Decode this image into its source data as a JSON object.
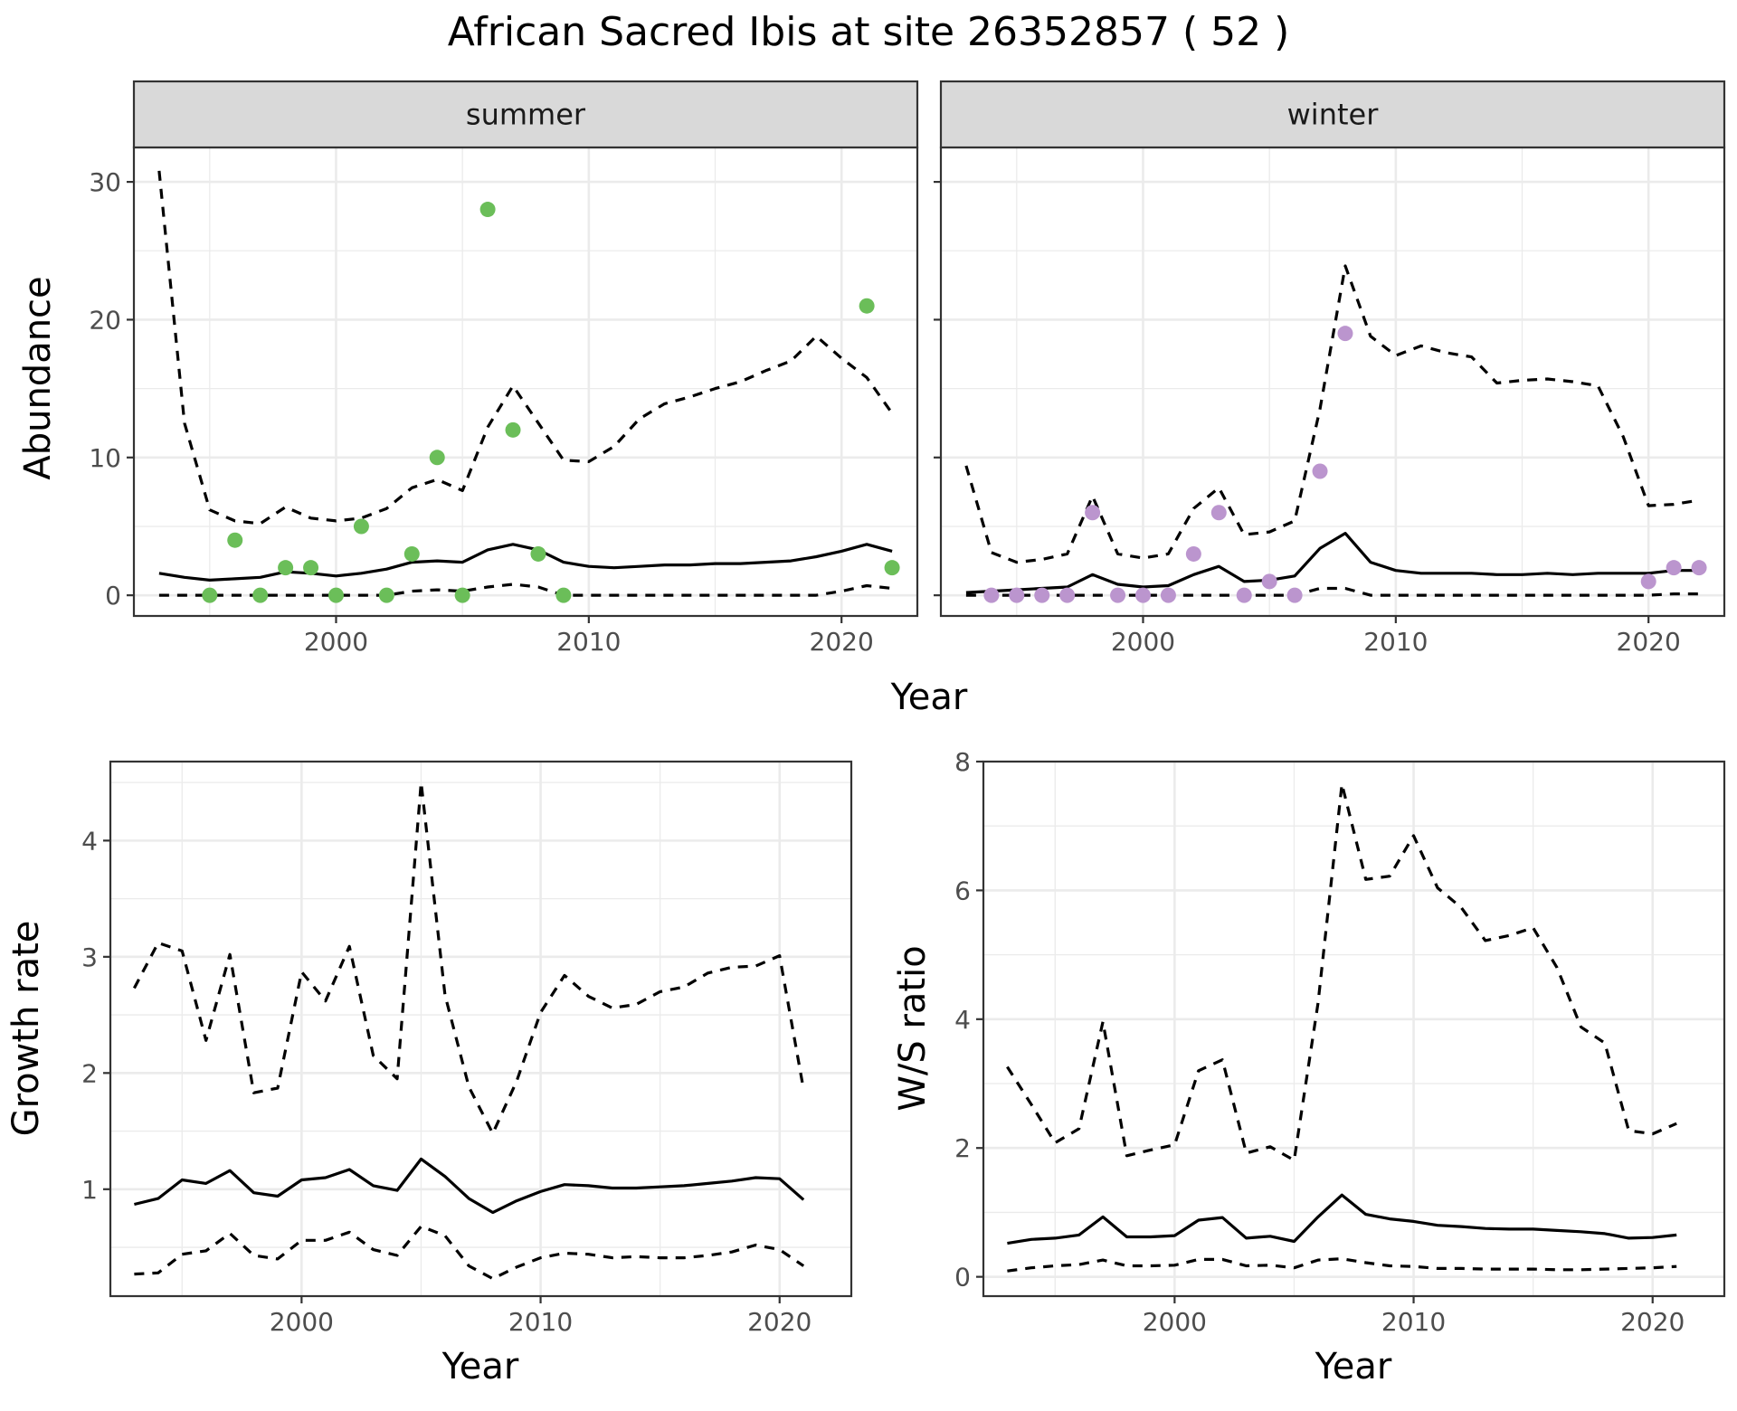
{
  "title": "African Sacred Ibis at site 26352857 ( 52 )",
  "colors": {
    "summer_points": "#6BBE59",
    "winter_points": "#BB95CE",
    "lines": "#000000",
    "strip_fill": "#D9D9D9"
  },
  "chart_data": [
    {
      "type": "line",
      "panel": "summer",
      "strip": "summer",
      "xlabel": "Year",
      "ylabel": "Abundance",
      "xlim": [
        1992,
        2023
      ],
      "ylim": [
        -1.5,
        32.5
      ],
      "xticks": [
        2000,
        2010,
        2020
      ],
      "yticks": [
        0,
        10,
        20,
        30
      ],
      "x": [
        1993,
        1994,
        1995,
        1996,
        1997,
        1998,
        1999,
        2000,
        2001,
        2002,
        2003,
        2004,
        2005,
        2006,
        2007,
        2008,
        2009,
        2010,
        2011,
        2012,
        2013,
        2014,
        2015,
        2016,
        2017,
        2018,
        2019,
        2020,
        2021,
        2022
      ],
      "series": [
        {
          "role": "estimate",
          "style": "solid",
          "values": [
            1.6,
            1.3,
            1.1,
            1.2,
            1.3,
            1.7,
            1.6,
            1.4,
            1.6,
            1.9,
            2.4,
            2.5,
            2.4,
            3.3,
            3.7,
            3.3,
            2.4,
            2.1,
            2.0,
            2.1,
            2.2,
            2.2,
            2.3,
            2.3,
            2.4,
            2.5,
            2.8,
            3.2,
            3.7,
            3.2
          ]
        },
        {
          "role": "upper",
          "style": "dashed",
          "values": [
            30.8,
            12.5,
            6.2,
            5.4,
            5.2,
            6.4,
            5.6,
            5.4,
            5.6,
            6.3,
            7.8,
            8.4,
            7.6,
            12.2,
            15.2,
            12.5,
            9.8,
            9.7,
            10.8,
            12.8,
            13.9,
            14.4,
            15.0,
            15.5,
            16.3,
            17.0,
            18.8,
            17.2,
            15.8,
            13.2
          ]
        },
        {
          "role": "lower",
          "style": "dashed",
          "values": [
            0,
            0,
            0,
            0,
            0,
            0,
            0,
            0,
            0,
            0,
            0.3,
            0.4,
            0.3,
            0.6,
            0.8,
            0.6,
            0,
            0,
            0,
            0,
            0,
            0,
            0,
            0,
            0,
            0,
            0,
            0.3,
            0.7,
            0.5
          ]
        }
      ],
      "points": {
        "x": [
          1995,
          1996,
          1997,
          1998,
          1999,
          2000,
          2001,
          2002,
          2003,
          2004,
          2005,
          2006,
          2007,
          2008,
          2009,
          2021,
          2022
        ],
        "y": [
          0,
          4,
          0,
          2,
          2,
          0,
          5,
          0,
          3,
          10,
          0,
          28,
          12,
          3,
          0,
          21,
          2
        ]
      }
    },
    {
      "type": "line",
      "panel": "winter",
      "strip": "winter",
      "xlabel": "Year",
      "ylabel": "Abundance",
      "xlim": [
        1992,
        2023
      ],
      "ylim": [
        -1.5,
        32.5
      ],
      "xticks": [
        2000,
        2010,
        2020
      ],
      "yticks": [
        0,
        10,
        20,
        30
      ],
      "x": [
        1993,
        1994,
        1995,
        1996,
        1997,
        1998,
        1999,
        2000,
        2001,
        2002,
        2003,
        2004,
        2005,
        2006,
        2007,
        2008,
        2009,
        2010,
        2011,
        2012,
        2013,
        2014,
        2015,
        2016,
        2017,
        2018,
        2019,
        2020,
        2021,
        2022
      ],
      "series": [
        {
          "role": "estimate",
          "style": "solid",
          "values": [
            0.2,
            0.3,
            0.4,
            0.5,
            0.6,
            1.5,
            0.8,
            0.6,
            0.7,
            1.5,
            2.1,
            1.0,
            1.1,
            1.4,
            3.4,
            4.5,
            2.4,
            1.8,
            1.6,
            1.6,
            1.6,
            1.5,
            1.5,
            1.6,
            1.5,
            1.6,
            1.6,
            1.6,
            1.8,
            1.8
          ]
        },
        {
          "role": "upper",
          "style": "dashed",
          "values": [
            9.4,
            3.1,
            2.4,
            2.6,
            3.0,
            7.2,
            3.0,
            2.7,
            3.0,
            6.3,
            7.8,
            4.4,
            4.6,
            5.4,
            13.5,
            23.9,
            18.8,
            17.4,
            18.1,
            17.6,
            17.3,
            15.4,
            15.6,
            15.7,
            15.5,
            15.2,
            11.5,
            6.5,
            6.6,
            6.9
          ]
        },
        {
          "role": "lower",
          "style": "dashed",
          "values": [
            0,
            0,
            0,
            0,
            0,
            0,
            0,
            0,
            0,
            0,
            0,
            0,
            0,
            0,
            0.5,
            0.5,
            0,
            0,
            0,
            0,
            0,
            0,
            0,
            0,
            0,
            0,
            0,
            0,
            0.1,
            0.1
          ]
        }
      ],
      "points": {
        "x": [
          1994,
          1995,
          1996,
          1997,
          1998,
          1999,
          2000,
          2001,
          2002,
          2003,
          2004,
          2005,
          2006,
          2007,
          2008,
          2020,
          2021,
          2022
        ],
        "y": [
          0,
          0,
          0,
          0,
          6,
          0,
          0,
          0,
          3,
          6,
          0,
          1,
          0,
          9,
          19,
          1,
          2,
          2
        ]
      }
    },
    {
      "type": "line",
      "panel": "growth",
      "xlabel": "Year",
      "ylabel": "Growth rate",
      "xlim": [
        1992,
        2023
      ],
      "ylim": [
        0.08,
        4.68
      ],
      "xticks": [
        2000,
        2010,
        2020
      ],
      "yticks": [
        1,
        2,
        3,
        4
      ],
      "x": [
        1993,
        1994,
        1995,
        1996,
        1997,
        1998,
        1999,
        2000,
        2001,
        2002,
        2003,
        2004,
        2005,
        2006,
        2007,
        2008,
        2009,
        2010,
        2011,
        2012,
        2013,
        2014,
        2015,
        2016,
        2017,
        2018,
        2019,
        2020,
        2021
      ],
      "series": [
        {
          "role": "estimate",
          "style": "solid",
          "values": [
            0.87,
            0.92,
            1.08,
            1.05,
            1.16,
            0.97,
            0.94,
            1.08,
            1.1,
            1.17,
            1.03,
            0.99,
            1.26,
            1.11,
            0.92,
            0.8,
            0.9,
            0.98,
            1.04,
            1.03,
            1.01,
            1.01,
            1.02,
            1.03,
            1.05,
            1.07,
            1.1,
            1.09,
            0.91
          ]
        },
        {
          "role": "upper",
          "style": "dashed",
          "values": [
            2.73,
            3.12,
            3.05,
            2.28,
            3.02,
            1.83,
            1.87,
            2.87,
            2.62,
            3.09,
            2.15,
            1.95,
            4.5,
            2.67,
            1.88,
            1.48,
            1.93,
            2.52,
            2.84,
            2.66,
            2.56,
            2.59,
            2.7,
            2.74,
            2.86,
            2.91,
            2.92,
            3.01,
            1.86
          ]
        },
        {
          "role": "lower",
          "style": "dashed",
          "values": [
            0.27,
            0.28,
            0.44,
            0.47,
            0.62,
            0.43,
            0.4,
            0.56,
            0.56,
            0.63,
            0.48,
            0.43,
            0.68,
            0.6,
            0.34,
            0.23,
            0.33,
            0.41,
            0.45,
            0.44,
            0.41,
            0.42,
            0.41,
            0.41,
            0.43,
            0.46,
            0.52,
            0.48,
            0.34
          ]
        }
      ]
    },
    {
      "type": "line",
      "panel": "ratio",
      "xlabel": "Year",
      "ylabel": "W/S ratio",
      "xlim": [
        1992,
        2023
      ],
      "ylim": [
        -0.3,
        8.0
      ],
      "xticks": [
        2000,
        2010,
        2020
      ],
      "yticks": [
        0,
        2,
        4,
        6,
        8
      ],
      "x": [
        1993,
        1994,
        1995,
        1996,
        1997,
        1998,
        1999,
        2000,
        2001,
        2002,
        2003,
        2004,
        2005,
        2006,
        2007,
        2008,
        2009,
        2010,
        2011,
        2012,
        2013,
        2014,
        2015,
        2016,
        2017,
        2018,
        2019,
        2020,
        2021
      ],
      "series": [
        {
          "role": "estimate",
          "style": "solid",
          "values": [
            0.52,
            0.58,
            0.6,
            0.65,
            0.93,
            0.62,
            0.62,
            0.64,
            0.88,
            0.92,
            0.6,
            0.63,
            0.55,
            0.93,
            1.27,
            0.97,
            0.9,
            0.86,
            0.8,
            0.78,
            0.75,
            0.74,
            0.74,
            0.72,
            0.7,
            0.67,
            0.6,
            0.61,
            0.65
          ]
        },
        {
          "role": "upper",
          "style": "dashed",
          "values": [
            3.26,
            2.68,
            2.08,
            2.3,
            3.96,
            1.88,
            1.97,
            2.05,
            3.2,
            3.37,
            1.92,
            2.02,
            1.81,
            4.25,
            7.65,
            6.17,
            6.22,
            6.85,
            6.04,
            5.73,
            5.22,
            5.3,
            5.42,
            4.8,
            3.88,
            3.63,
            2.27,
            2.22,
            2.38
          ]
        },
        {
          "role": "lower",
          "style": "dashed",
          "values": [
            0.09,
            0.14,
            0.17,
            0.19,
            0.26,
            0.17,
            0.17,
            0.18,
            0.27,
            0.27,
            0.17,
            0.18,
            0.14,
            0.26,
            0.28,
            0.22,
            0.17,
            0.16,
            0.13,
            0.13,
            0.12,
            0.12,
            0.12,
            0.11,
            0.11,
            0.12,
            0.13,
            0.14,
            0.16
          ]
        }
      ]
    }
  ]
}
